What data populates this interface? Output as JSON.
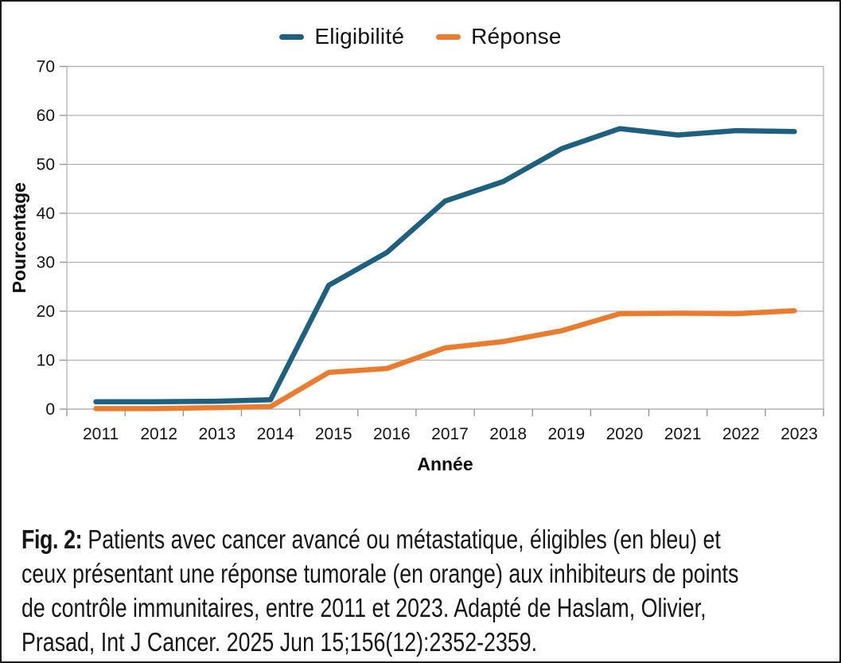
{
  "chart_data": {
    "type": "line",
    "title": "",
    "xlabel": "Année",
    "ylabel": "Pourcentage",
    "categories": [
      "2011",
      "2012",
      "2013",
      "2014",
      "2015",
      "2016",
      "2017",
      "2018",
      "2019",
      "2020",
      "2021",
      "2022",
      "2023"
    ],
    "series": [
      {
        "name": "Eligibilité",
        "color": "#20607f",
        "values": [
          1.5,
          1.5,
          1.6,
          1.9,
          25.3,
          32.0,
          42.5,
          46.5,
          53.2,
          57.3,
          56.0,
          56.9,
          56.7
        ]
      },
      {
        "name": "Réponse",
        "color": "#e97c30",
        "values": [
          0.1,
          0.1,
          0.3,
          0.5,
          7.5,
          8.3,
          12.5,
          13.8,
          16.0,
          19.5,
          19.6,
          19.5,
          20.1
        ]
      }
    ],
    "ylim": [
      0,
      70
    ],
    "yticks": [
      0,
      10,
      20,
      30,
      40,
      50,
      60,
      70
    ],
    "grid": true,
    "grid_color": "#b2b2b2",
    "axis_color": "#8f8f8f",
    "legend_position": "top-center"
  },
  "caption": {
    "prefix": "Fig. 2:",
    "line1": "Patients avec cancer avancé ou métastatique, éligibles (en bleu) et",
    "line2": "ceux présentant une réponse tumorale (en orange) aux inhibiteurs de points",
    "line3": "de contrôle immunitaires, entre 2011 et 2023. Adapté de Haslam, Olivier,",
    "line4": "Prasad, Int J Cancer. 2025 Jun 15;156(12):2352-2359."
  }
}
